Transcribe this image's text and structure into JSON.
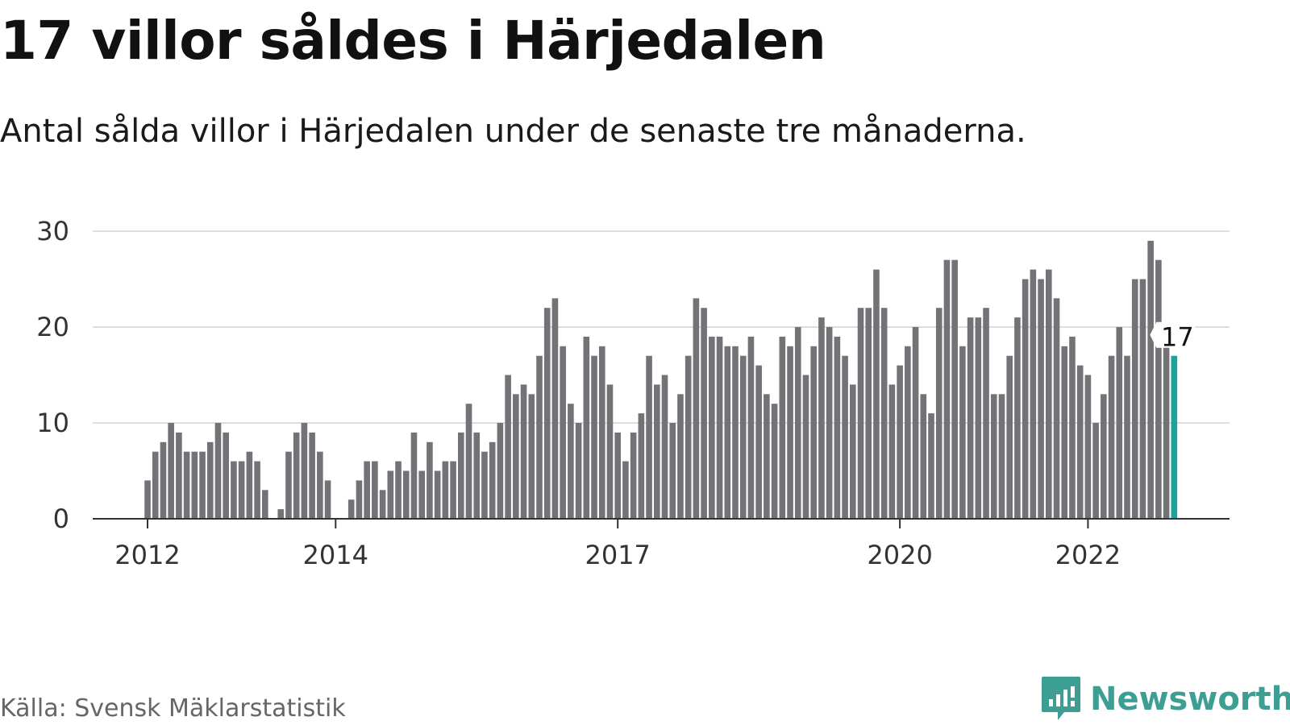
{
  "title": "17 villor såldes i Härjedalen",
  "subtitle": "Antal sålda villor i Härjedalen under de senaste tre månaderna.",
  "source": "Källa: Svensk Mäklarstatistik",
  "brand": "Newsworthy",
  "colors": {
    "bar": "#737277",
    "highlight": "#1ba39c",
    "grid": "#dddddd",
    "axis": "#333333",
    "brand": "#3d9e94"
  },
  "chart_data": {
    "type": "bar",
    "title": "17 villor såldes i Härjedalen",
    "subtitle": "Antal sålda villor i Härjedalen under de senaste tre månaderna.",
    "xlabel": "",
    "ylabel": "",
    "ylim": [
      0,
      30
    ],
    "yticks": [
      0,
      10,
      20,
      30
    ],
    "x_start": "2012-01",
    "x_interval": "month",
    "xticks": [
      {
        "label": "2012",
        "index": 0
      },
      {
        "label": "2014",
        "index": 24
      },
      {
        "label": "2017",
        "index": 60
      },
      {
        "label": "2020",
        "index": 96
      },
      {
        "label": "2022",
        "index": 120
      }
    ],
    "values": [
      4,
      7,
      8,
      10,
      9,
      7,
      7,
      7,
      8,
      10,
      9,
      6,
      6,
      7,
      6,
      3,
      0,
      1,
      7,
      9,
      10,
      9,
      7,
      4,
      0,
      0,
      2,
      4,
      6,
      6,
      3,
      5,
      6,
      5,
      9,
      5,
      8,
      5,
      6,
      6,
      9,
      12,
      9,
      7,
      8,
      10,
      15,
      13,
      14,
      13,
      17,
      22,
      23,
      18,
      12,
      10,
      19,
      17,
      18,
      14,
      9,
      6,
      9,
      11,
      17,
      14,
      15,
      10,
      13,
      17,
      23,
      22,
      19,
      19,
      18,
      18,
      17,
      19,
      16,
      13,
      12,
      19,
      18,
      20,
      15,
      18,
      21,
      20,
      19,
      17,
      14,
      22,
      22,
      26,
      22,
      14,
      16,
      18,
      20,
      13,
      11,
      22,
      27,
      27,
      18,
      21,
      21,
      22,
      13,
      13,
      17,
      21,
      25,
      26,
      25,
      26,
      23,
      18,
      19,
      16,
      15,
      10,
      13,
      17,
      20,
      17,
      25,
      25,
      29,
      27,
      18,
      17
    ],
    "highlight_index": 131,
    "annotation": "17",
    "grid": true,
    "legend": "none"
  }
}
